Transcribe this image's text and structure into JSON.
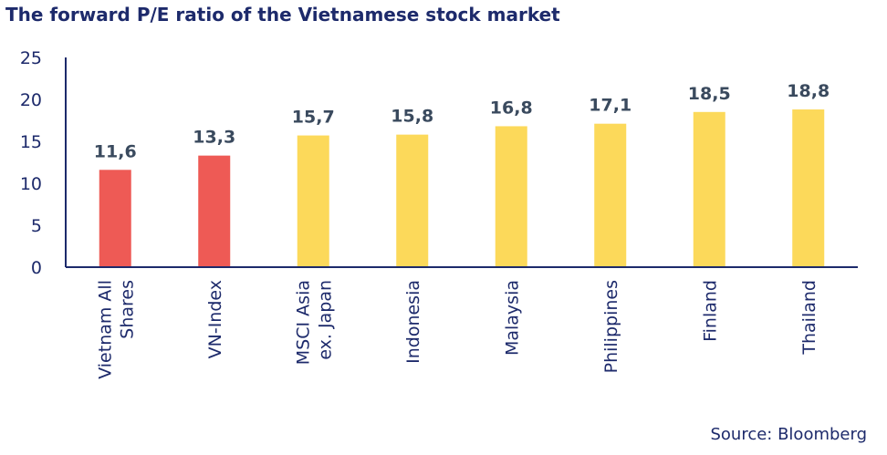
{
  "title": "The forward P/E ratio of the Vietnamese stock market",
  "source": "Source: Bloomberg",
  "colors": {
    "highlight": "#ee5a55",
    "other": "#fcd95a",
    "axis": "#1d2a6b",
    "label": "#3a4a5e"
  },
  "chart_data": {
    "type": "bar",
    "title": "The forward P/E ratio of the Vietnamese stock market",
    "categories": [
      [
        "Vietnam All",
        "Shares"
      ],
      [
        "VN-Index"
      ],
      [
        "MSCI Asia",
        "ex. Japan"
      ],
      [
        "Indonesia"
      ],
      [
        "Malaysia"
      ],
      [
        "Philippines"
      ],
      [
        "Finland"
      ],
      [
        "Thailand"
      ]
    ],
    "values": [
      11.6,
      13.3,
      15.7,
      15.8,
      16.8,
      17.1,
      18.5,
      18.8
    ],
    "value_labels": [
      "11,6",
      "13,3",
      "15,7",
      "15,8",
      "16,8",
      "17,1",
      "18,5",
      "18,8"
    ],
    "bar_colors": [
      "#ee5a55",
      "#ee5a55",
      "#fcd95a",
      "#fcd95a",
      "#fcd95a",
      "#fcd95a",
      "#fcd95a",
      "#fcd95a"
    ],
    "yticks": [
      "0",
      "5",
      "10",
      "15",
      "20",
      "25"
    ],
    "ylim": [
      0,
      25
    ],
    "xlabel": "",
    "ylabel": "",
    "grid": false,
    "legend": "none"
  }
}
